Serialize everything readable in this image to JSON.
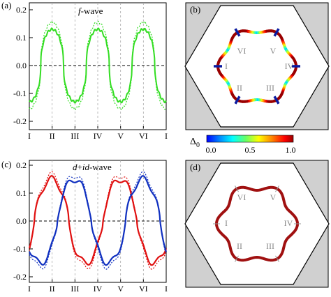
{
  "panels": {
    "a": {
      "label": "(a)",
      "title_italic": "f",
      "title_rest": "-wave",
      "y_ticks": [
        "0.2",
        "0.1",
        "0.0",
        "-0.1",
        "-0.2"
      ],
      "x_ticks": [
        "I",
        "II",
        "III",
        "IV",
        "V",
        "VI",
        "I"
      ]
    },
    "b": {
      "label": "(b)",
      "node_labels": [
        "VI",
        "V",
        "I",
        "IV",
        "II",
        "III"
      ]
    },
    "c": {
      "label": "(c)",
      "title_italic_1": "d",
      "title_plus": "+",
      "title_i": "i",
      "title_italic_2": "d",
      "title_rest": "-wave",
      "y_ticks": [
        "0.2",
        "0.1",
        "0.0",
        "-0.1",
        "-0.2"
      ],
      "x_ticks": [
        "I",
        "II",
        "III",
        "IV",
        "V",
        "VI",
        "I"
      ]
    },
    "d": {
      "label": "(d)",
      "node_labels": [
        "VI",
        "V",
        "I",
        "IV",
        "II",
        "III"
      ]
    }
  },
  "colorbar": {
    "symbol": "Δ",
    "subscript": "0",
    "ticks": [
      "0.0",
      "0.5",
      "1.0"
    ]
  },
  "colors": {
    "green": "#33dd22",
    "red": "#e01010",
    "blue": "#1030c0",
    "darkred": "#a01010",
    "gray_fill": "#d0d0d0"
  },
  "chart_data": [
    {
      "type": "line",
      "panel": "a",
      "x": [
        "I",
        "II",
        "III",
        "IV",
        "V",
        "VI",
        "I"
      ],
      "ylim": [
        -0.22,
        0.22
      ],
      "series": [
        {
          "style": "solid",
          "color": "#33dd22",
          "shape": "f-wave",
          "amplitude": 0.13
        },
        {
          "style": "dotted",
          "color": "#33dd22",
          "shape": "f-wave",
          "amplitude": 0.155
        }
      ]
    },
    {
      "type": "line",
      "panel": "c",
      "x": [
        "I",
        "II",
        "III",
        "IV",
        "V",
        "VI",
        "I"
      ],
      "ylim": [
        -0.22,
        0.22
      ],
      "series": [
        {
          "style": "solid",
          "color": "#e01010",
          "shape": "d+id-wave",
          "amplitude": 0.15
        },
        {
          "style": "dotted",
          "color": "#e01010",
          "shape": "d+id-wave",
          "amplitude": 0.16
        },
        {
          "style": "solid",
          "color": "#1030c0",
          "shape": "d+id-wave",
          "amplitude": 0.15
        },
        {
          "style": "dotted",
          "color": "#1030c0",
          "shape": "d+id-wave",
          "amplitude": 0.16
        }
      ]
    }
  ]
}
